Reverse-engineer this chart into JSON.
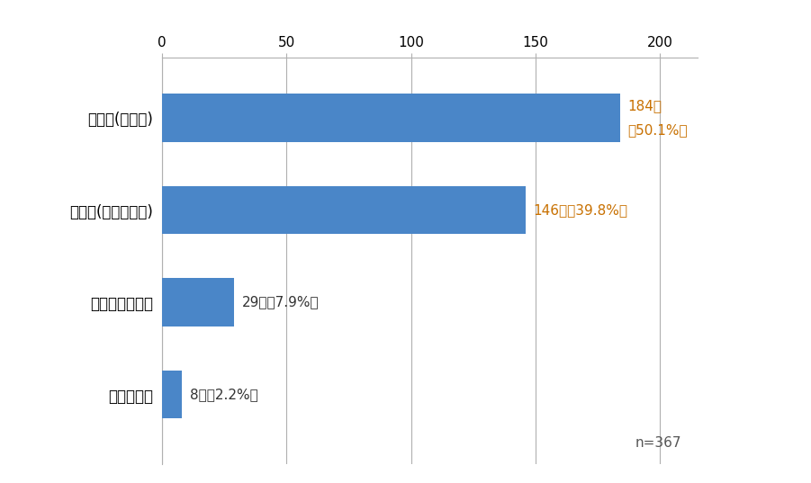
{
  "categories": [
    "わからない",
    "アンダーカット",
    "戸先側(ドアノブ側)",
    "吟元側(丁番側)"
  ],
  "values": [
    8,
    29,
    146,
    184
  ],
  "labels": [
    "8人（2.2%）",
    "29人（7.9%）",
    "146人（39.8%）",
    "184人\n（50.1%）"
  ],
  "label_colors": [
    "#333333",
    "#333333",
    "#c87000",
    "#c87000"
  ],
  "bar_color": "#4a86c8",
  "xlim": [
    0,
    215
  ],
  "xticks": [
    0,
    50,
    100,
    150,
    200
  ],
  "background_color": "#ffffff",
  "n_label": "n=367",
  "bar_height": 0.52,
  "label_fontsize": 11,
  "tick_fontsize": 11,
  "ytick_fontsize": 12,
  "grid_color": "#b0b0b0",
  "spine_color": "#b0b0b0"
}
